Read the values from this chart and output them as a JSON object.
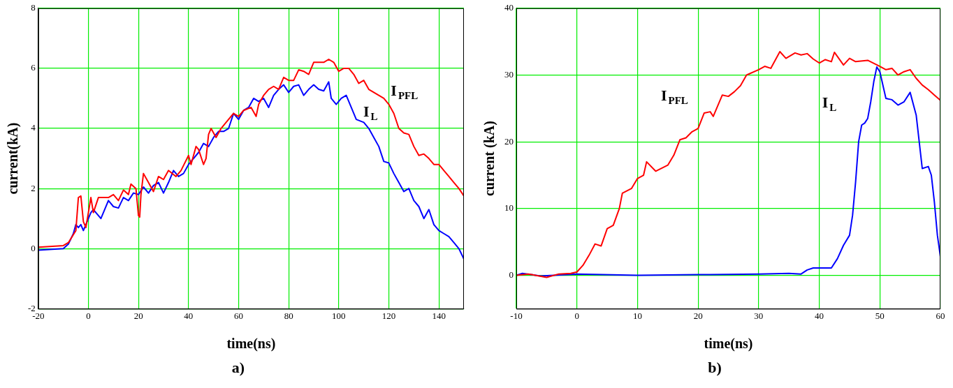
{
  "chart_data": [
    {
      "type": "line",
      "title": "a)",
      "xlabel": "time(ns)",
      "ylabel": "current(kA)",
      "xlim": [
        -20,
        150
      ],
      "xticks": [
        -20,
        0,
        20,
        40,
        60,
        80,
        100,
        120,
        140
      ],
      "ylim": [
        -2,
        8
      ],
      "yticks": [
        -2,
        0,
        2,
        4,
        6,
        8
      ],
      "grid": true,
      "series": [
        {
          "name": "I$_{PFL}$",
          "color": "#ff0000",
          "x": [
            -20,
            -10,
            -8,
            -5,
            -4,
            -3,
            -2,
            -1,
            0,
            1,
            2,
            4,
            8,
            10,
            12,
            14,
            16,
            17,
            19,
            20,
            20.5,
            21,
            22,
            24,
            26,
            28,
            30,
            32,
            35,
            37,
            40,
            41,
            43,
            44,
            46,
            47,
            48,
            49,
            51,
            53,
            55,
            58,
            60,
            62,
            65,
            67,
            68,
            70,
            72,
            74,
            76,
            78,
            80,
            82,
            84,
            86,
            88,
            90,
            92,
            94,
            96,
            98,
            100,
            102,
            104,
            106,
            108,
            110,
            112,
            114,
            116,
            118,
            120,
            122,
            124,
            126,
            128,
            130,
            132,
            134,
            136,
            138,
            140,
            142,
            144,
            146,
            148,
            150
          ],
          "values": [
            0.05,
            0.1,
            0.2,
            0.6,
            1.7,
            1.75,
            0.9,
            0.7,
            1.2,
            1.7,
            1.2,
            1.7,
            1.7,
            1.8,
            1.6,
            1.95,
            1.8,
            2.15,
            2.0,
            1.1,
            1.05,
            1.8,
            2.5,
            2.2,
            1.9,
            2.4,
            2.3,
            2.6,
            2.4,
            2.6,
            3.1,
            2.8,
            3.4,
            3.3,
            2.8,
            3.0,
            3.8,
            4.0,
            3.7,
            4.0,
            4.2,
            4.5,
            4.4,
            4.6,
            4.7,
            4.4,
            4.8,
            5.1,
            5.3,
            5.4,
            5.3,
            5.7,
            5.6,
            5.6,
            5.95,
            5.9,
            5.8,
            6.2,
            6.2,
            6.2,
            6.3,
            6.2,
            5.9,
            6.0,
            6.0,
            5.8,
            5.5,
            5.6,
            5.3,
            5.2,
            5.1,
            5.0,
            4.8,
            4.5,
            4.0,
            3.85,
            3.8,
            3.4,
            3.1,
            3.15,
            3.0,
            2.8,
            2.8,
            2.6,
            2.4,
            2.2,
            2.0,
            1.75
          ]
        },
        {
          "name": "I$_{L}$",
          "color": "#0000ff",
          "x": [
            -20,
            -10,
            -8,
            -6,
            -5,
            -4,
            -3,
            -2,
            -1,
            0,
            1,
            2,
            3,
            4,
            5,
            6,
            8,
            10,
            12,
            14,
            16,
            18,
            20,
            22,
            24,
            26,
            28,
            30,
            32,
            34,
            36,
            38,
            40,
            42,
            44,
            46,
            48,
            50,
            52,
            54,
            56,
            58,
            60,
            62,
            64,
            66,
            68,
            70,
            72,
            74,
            76,
            78,
            80,
            82,
            84,
            86,
            88,
            90,
            92,
            94,
            96,
            97,
            99,
            101,
            103,
            105,
            107,
            110,
            112,
            114,
            116,
            118,
            120,
            122,
            124,
            126,
            128,
            130,
            132,
            134,
            136,
            138,
            140,
            142,
            144,
            146,
            148,
            150
          ],
          "values": [
            -0.05,
            0.0,
            0.15,
            0.5,
            0.8,
            0.7,
            0.8,
            0.6,
            0.8,
            1.0,
            1.2,
            1.3,
            1.2,
            1.1,
            1.0,
            1.2,
            1.6,
            1.4,
            1.35,
            1.7,
            1.6,
            1.85,
            1.8,
            2.05,
            1.85,
            2.1,
            2.2,
            1.85,
            2.2,
            2.6,
            2.4,
            2.5,
            2.8,
            3.0,
            3.2,
            3.5,
            3.4,
            3.7,
            3.9,
            3.9,
            4.0,
            4.5,
            4.3,
            4.6,
            4.7,
            5.0,
            4.9,
            5.0,
            4.7,
            5.1,
            5.3,
            5.45,
            5.2,
            5.4,
            5.45,
            5.1,
            5.3,
            5.45,
            5.3,
            5.25,
            5.55,
            5.0,
            4.8,
            5.0,
            5.1,
            4.7,
            4.3,
            4.2,
            4.0,
            3.7,
            3.4,
            2.9,
            2.85,
            2.5,
            2.2,
            1.9,
            2.0,
            1.6,
            1.4,
            1.0,
            1.3,
            0.8,
            0.6,
            0.5,
            0.4,
            0.2,
            0.0,
            -0.35
          ]
        }
      ]
    },
    {
      "type": "line",
      "title": "b)",
      "xlabel": "time(ns)",
      "ylabel": "current (kA)",
      "xlim": [
        -10,
        60
      ],
      "xticks": [
        -10,
        0,
        10,
        20,
        30,
        40,
        50,
        60
      ],
      "ylim": [
        -5,
        40
      ],
      "yticks": [
        0,
        10,
        20,
        30,
        40
      ],
      "grid": true,
      "series": [
        {
          "name": "I$_{PFL}$",
          "color": "#ff0000",
          "x": [
            -10,
            -8,
            -5,
            -3,
            -1,
            0,
            1,
            2,
            3,
            4,
            5,
            6,
            7,
            7.5,
            9,
            10,
            11,
            11.5,
            13,
            15,
            16,
            17,
            18,
            19,
            20,
            21,
            22,
            22.5,
            24,
            25,
            26,
            27,
            28,
            30,
            31,
            32,
            33.5,
            34.5,
            36,
            37,
            38,
            39,
            40,
            41,
            42,
            42.5,
            44,
            45,
            46,
            48,
            50,
            51,
            52,
            53,
            54,
            55,
            56,
            57,
            58,
            59,
            60
          ],
          "values": [
            0,
            0.2,
            -0.3,
            0.2,
            0.3,
            0.5,
            1.5,
            3,
            4.7,
            4.4,
            7,
            7.5,
            10,
            12.3,
            13,
            14.5,
            15,
            17,
            15.6,
            16.5,
            18,
            20.3,
            20.6,
            21.5,
            22,
            24.3,
            24.5,
            23.8,
            27,
            26.8,
            27.5,
            28.4,
            30,
            30.8,
            31.3,
            31.0,
            33.5,
            32.5,
            33.3,
            33,
            33.2,
            32.4,
            31.8,
            32.3,
            32.0,
            33.4,
            31.5,
            32.5,
            32,
            32.2,
            31.3,
            30.8,
            31.0,
            30,
            30.5,
            30.8,
            29.5,
            28.5,
            27.8,
            27,
            26.2
          ]
        },
        {
          "name": "I$_{L}$",
          "color": "#0000ff",
          "x": [
            -10,
            -9,
            -6,
            0,
            10,
            20,
            30,
            35,
            37,
            38,
            39,
            40,
            41,
            42,
            43,
            44,
            45,
            45.5,
            46,
            46.5,
            47,
            47.5,
            48,
            48.5,
            49,
            49.5,
            50,
            51,
            52,
            53,
            54,
            55,
            56,
            56.5,
            57,
            58,
            58.5,
            59,
            59.5,
            60
          ],
          "values": [
            0,
            0.3,
            -0.1,
            0.2,
            0,
            0.1,
            0.2,
            0.3,
            0.2,
            0.8,
            1.1,
            1.1,
            1.1,
            1.1,
            2.5,
            4.5,
            6,
            9,
            14,
            20,
            22.5,
            22.8,
            23.5,
            26,
            29,
            31.2,
            30.5,
            26.5,
            26.3,
            25.5,
            26,
            27.4,
            24,
            20,
            16,
            16.3,
            15,
            11,
            6,
            2.8
          ]
        }
      ]
    }
  ]
}
